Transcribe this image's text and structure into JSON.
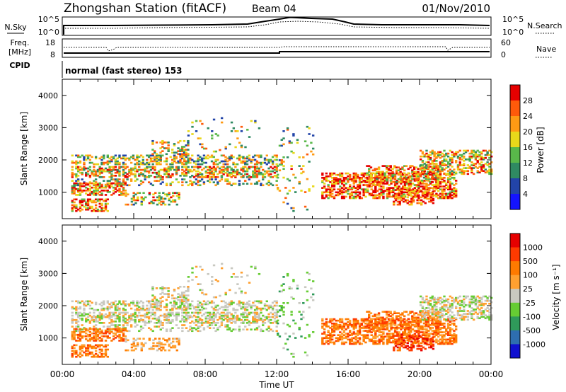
{
  "header": {
    "title": "Zhongshan Station (fitACF)",
    "beam": "Beam 04",
    "date": "01/Nov/2010"
  },
  "noise_panel": {
    "left_label": "N.Sky",
    "left_ticks": [
      "10^5",
      "10^0"
    ],
    "right_label": "N.Search",
    "right_ticks": [
      "10^5",
      "10^0"
    ]
  },
  "freq_panel": {
    "left_label_line1": "Freq.",
    "left_label_line2": "[MHz]",
    "left_ticks": [
      "18",
      "8"
    ],
    "right_label": "Nave",
    "right_ticks": [
      "60",
      "0"
    ],
    "cpid_label": "CPID",
    "mode_text": "normal (fast stereo) 153"
  },
  "chart_data": [
    {
      "type": "heatmap",
      "name": "power",
      "xlabel": "Time UT",
      "ylabel": "Slant Range [km]",
      "xlim": [
        0,
        24
      ],
      "ylim": [
        180,
        4500
      ],
      "y_ticks": [
        "1000",
        "2000",
        "3000",
        "4000"
      ],
      "colorbar": {
        "label": "Power [dB]",
        "ticks": [
          "4",
          "8",
          "12",
          "16",
          "20",
          "24",
          "28"
        ],
        "colors": [
          "#1414ff",
          "#2244a8",
          "#2f8a62",
          "#59b84a",
          "#e8d81a",
          "#ff9a14",
          "#ff5a0a",
          "#e60000"
        ]
      }
    },
    {
      "type": "heatmap",
      "name": "velocity",
      "xlabel": "Time UT",
      "ylabel": "Slant Range [km]",
      "xlim": [
        0,
        24
      ],
      "ylim": [
        180,
        4500
      ],
      "y_ticks": [
        "1000",
        "2000",
        "3000",
        "4000"
      ],
      "x_ticks": [
        "00:00",
        "04:00",
        "08:00",
        "12:00",
        "16:00",
        "20:00",
        "00:00"
      ],
      "colorbar": {
        "label": "Velocity [m s⁻¹]",
        "ticks": [
          "1000",
          "500",
          "100",
          "25",
          "-25",
          "-100",
          "-500",
          "-1000"
        ],
        "colors": [
          "#1010d0",
          "#2e6eb0",
          "#2f9a5a",
          "#66cc33",
          "#c8c8c0",
          "#ffa030",
          "#ff7a00",
          "#ff3a00",
          "#e60000"
        ]
      }
    }
  ]
}
